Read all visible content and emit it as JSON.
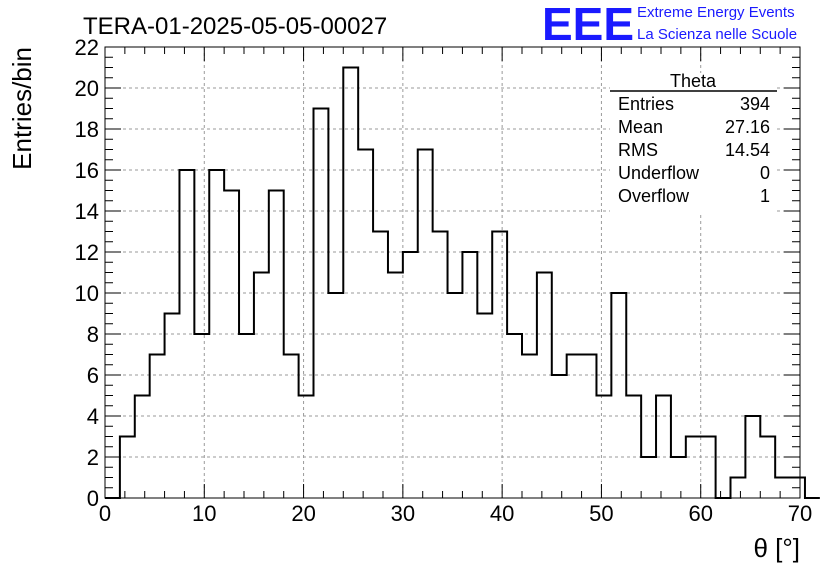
{
  "title": "TERA-01-2025-05-05-00027",
  "logo": {
    "mark": "EEE",
    "line1": "Extreme Energy Events",
    "line2": "La Scienza nelle Scuole",
    "color": "#1a1aff"
  },
  "stats": {
    "name": "Theta",
    "rows": [
      {
        "label": "Entries",
        "value": "394"
      },
      {
        "label": "Mean",
        "value": "27.16"
      },
      {
        "label": "RMS",
        "value": "14.54"
      },
      {
        "label": "Underflow",
        "value": "0"
      },
      {
        "label": "Overflow",
        "value": "1"
      }
    ]
  },
  "chart_data": {
    "type": "histogram",
    "xlabel": "θ [°]",
    "ylabel": "Entries/bin",
    "xlim": [
      0,
      70
    ],
    "ylim": [
      0,
      22
    ],
    "xticks": [
      0,
      10,
      20,
      30,
      40,
      50,
      60,
      70
    ],
    "yticks": [
      0,
      2,
      4,
      6,
      8,
      10,
      12,
      14,
      16,
      18,
      20,
      22
    ],
    "grid": true,
    "bin_width": 1.5,
    "bin_start": 0,
    "counts": [
      0,
      3,
      5,
      7,
      9,
      16,
      8,
      16,
      15,
      8,
      11,
      15,
      7,
      5,
      19,
      10,
      21,
      17,
      13,
      11,
      12,
      17,
      13,
      10,
      12,
      9,
      13,
      8,
      7,
      11,
      6,
      7,
      7,
      5,
      10,
      5,
      2,
      5,
      2,
      3,
      3,
      0,
      1,
      4,
      3,
      1,
      1,
      0
    ]
  }
}
